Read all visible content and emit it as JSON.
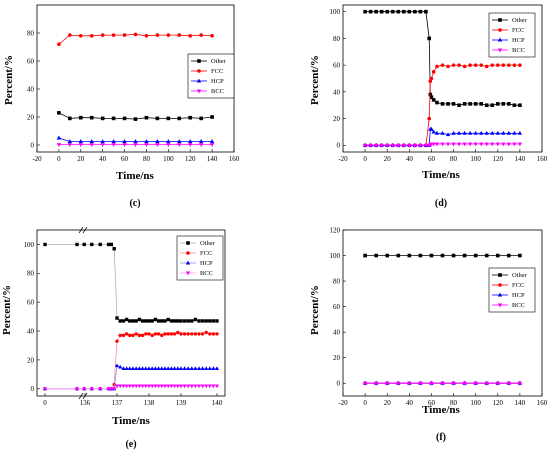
{
  "colors": {
    "Other": "#000000",
    "FCC": "#ff0000",
    "HCP": "#0000ff",
    "BCC": "#ff00ff"
  },
  "chart_data": [
    {
      "type": "line",
      "panel_label": "(c)",
      "xlabel": "Time/ns",
      "ylabel": "Percent/%",
      "xlim": [
        -20,
        160
      ],
      "ylim": [
        -5,
        100
      ],
      "xticks": [
        -20,
        0,
        20,
        40,
        60,
        80,
        100,
        120,
        140,
        160
      ],
      "yticks": [
        0,
        20,
        40,
        60,
        80
      ],
      "legend_position": "right",
      "x": [
        0,
        10,
        20,
        30,
        40,
        50,
        60,
        70,
        80,
        90,
        100,
        110,
        120,
        130,
        140
      ],
      "series": [
        {
          "name": "Other",
          "marker": "square",
          "values": [
            23,
            19,
            19.5,
            19.5,
            19,
            19,
            19,
            18.5,
            19.5,
            19,
            19,
            19,
            19.5,
            19,
            20
          ]
        },
        {
          "name": "FCC",
          "marker": "circle",
          "values": [
            72,
            78.5,
            78,
            78,
            78.5,
            78.5,
            78.5,
            79,
            78,
            78.5,
            78.5,
            78.5,
            78,
            78.5,
            78
          ]
        },
        {
          "name": "HCP",
          "marker": "triangle-up",
          "values": [
            5,
            2.5,
            2.5,
            2.5,
            2.5,
            2.5,
            2.5,
            2.5,
            2.5,
            2.5,
            2.5,
            2.5,
            2.5,
            2.5,
            2.5
          ]
        },
        {
          "name": "BCC",
          "marker": "triangle-down",
          "values": [
            0.3,
            0.3,
            0.3,
            0.3,
            0.3,
            0.3,
            0.3,
            0.3,
            0.3,
            0.3,
            0.3,
            0.3,
            0.3,
            0.3,
            0.3
          ]
        }
      ]
    },
    {
      "type": "line",
      "panel_label": "(d)",
      "xlabel": "Time/ns",
      "ylabel": "Percent/%",
      "xlim": [
        -20,
        160
      ],
      "ylim": [
        -5,
        105
      ],
      "xticks": [
        -20,
        0,
        20,
        40,
        60,
        80,
        100,
        120,
        140,
        160
      ],
      "yticks": [
        0,
        20,
        40,
        60,
        80,
        100
      ],
      "legend_position": "top-right",
      "x": [
        0,
        5,
        10,
        15,
        20,
        25,
        30,
        35,
        40,
        45,
        50,
        55,
        58,
        59,
        60,
        62,
        65,
        70,
        75,
        80,
        85,
        90,
        95,
        100,
        105,
        110,
        115,
        120,
        125,
        130,
        135,
        140
      ],
      "series": [
        {
          "name": "Other",
          "marker": "square",
          "values": [
            100,
            100,
            100,
            100,
            100,
            100,
            100,
            100,
            100,
            100,
            100,
            100,
            80,
            38,
            36,
            34,
            32,
            31,
            31,
            31,
            30,
            31,
            31,
            31,
            31,
            30,
            30,
            31,
            31,
            31,
            30,
            30
          ]
        },
        {
          "name": "FCC",
          "marker": "circle",
          "values": [
            0,
            0,
            0,
            0,
            0,
            0,
            0,
            0,
            0,
            0,
            0,
            0,
            20,
            48,
            50,
            55,
            59,
            60,
            59,
            60,
            60,
            59,
            60,
            60,
            60,
            59,
            60,
            60,
            60,
            60,
            60,
            60
          ]
        },
        {
          "name": "HCP",
          "marker": "triangle-up",
          "values": [
            0,
            0,
            0,
            0,
            0,
            0,
            0,
            0,
            0,
            0,
            0,
            0,
            0,
            12,
            12,
            10,
            9,
            9,
            8,
            9,
            9,
            9,
            9,
            9,
            9,
            9,
            9,
            9,
            9,
            9,
            9,
            9
          ]
        },
        {
          "name": "BCC",
          "marker": "triangle-down",
          "values": [
            0,
            0,
            0,
            0,
            0,
            0,
            0,
            0,
            0,
            0,
            0,
            0,
            0,
            1,
            1,
            1,
            1,
            1,
            1,
            1,
            1,
            1,
            1,
            1,
            1,
            1,
            1,
            1,
            1,
            1,
            1,
            1
          ]
        }
      ]
    },
    {
      "type": "line",
      "panel_label": "(e)",
      "xlabel": "Time/ns",
      "ylabel": "Percent/%",
      "ylim": [
        -5,
        110
      ],
      "xticks": [
        "0",
        "136",
        "137",
        "138",
        "139",
        "140"
      ],
      "yticks": [
        0,
        20,
        40,
        60,
        80,
        100
      ],
      "broken_axis": true,
      "legend_position": "top-right",
      "x": [
        0,
        135.4,
        135.8,
        136.1,
        136.4,
        136.7,
        136.8,
        136.9,
        137.0,
        137.1,
        137.2,
        137.3,
        137.4,
        137.5,
        137.6,
        137.7,
        137.8,
        137.9,
        138.0,
        138.1,
        138.2,
        138.3,
        138.4,
        138.5,
        138.6,
        138.7,
        138.8,
        138.9,
        139.0,
        139.1,
        139.2,
        139.3,
        139.4,
        139.5,
        139.6,
        139.7,
        139.8,
        139.9,
        140.0
      ],
      "series": [
        {
          "name": "Other",
          "marker": "square",
          "values": [
            100,
            100,
            100,
            100,
            100,
            100,
            100,
            97,
            49,
            47,
            47,
            48,
            47,
            47,
            47,
            48,
            47,
            47,
            47,
            47,
            48,
            47,
            47,
            47,
            48,
            47,
            47,
            47,
            47,
            47,
            47,
            47,
            48,
            47,
            47,
            47,
            47,
            47,
            47
          ]
        },
        {
          "name": "FCC",
          "marker": "circle",
          "values": [
            0,
            0,
            0,
            0,
            0,
            0,
            0,
            3,
            33,
            37,
            37,
            38,
            37,
            37,
            38,
            37,
            37,
            38,
            38,
            37,
            38,
            38,
            37,
            38,
            38,
            38,
            38,
            39,
            38,
            38,
            38,
            38,
            38,
            38,
            38,
            39,
            38,
            38,
            38
          ]
        },
        {
          "name": "HCP",
          "marker": "triangle-up",
          "values": [
            0,
            0,
            0,
            0,
            0,
            0,
            0,
            0,
            16,
            15,
            14,
            14,
            14,
            14,
            14,
            14,
            14,
            14,
            14,
            14,
            14,
            14,
            14,
            14,
            14,
            14,
            14,
            14,
            14,
            14,
            14,
            14,
            14,
            14,
            14,
            14,
            14,
            14,
            14
          ]
        },
        {
          "name": "BCC",
          "marker": "triangle-down",
          "values": [
            0,
            0,
            0,
            0,
            0,
            0,
            0,
            0,
            2,
            2,
            2,
            2,
            2,
            2,
            2,
            2,
            2,
            2,
            2,
            2,
            2,
            2,
            2,
            2,
            2,
            2,
            2,
            2,
            2,
            2,
            2,
            2,
            2,
            2,
            2,
            2,
            2,
            2,
            2
          ]
        }
      ]
    },
    {
      "type": "line",
      "panel_label": "(f)",
      "xlabel": "Time/ns",
      "ylabel": "Percent/%",
      "xlim": [
        -20,
        160
      ],
      "ylim": [
        -10,
        120
      ],
      "xticks": [
        -20,
        0,
        20,
        40,
        60,
        80,
        100,
        120,
        140,
        160
      ],
      "yticks": [
        0,
        20,
        40,
        60,
        80,
        100,
        120
      ],
      "legend_position": "right",
      "x": [
        0,
        10,
        20,
        30,
        40,
        50,
        60,
        70,
        80,
        90,
        100,
        110,
        120,
        130,
        140
      ],
      "series": [
        {
          "name": "Other",
          "marker": "square",
          "values": [
            100,
            100,
            100,
            100,
            100,
            100,
            100,
            100,
            100,
            100,
            100,
            100,
            100,
            100,
            100
          ]
        },
        {
          "name": "FCC",
          "marker": "circle",
          "values": [
            0,
            0,
            0,
            0,
            0,
            0,
            0,
            0,
            0,
            0,
            0,
            0,
            0,
            0,
            0
          ]
        },
        {
          "name": "HCP",
          "marker": "triangle-up",
          "values": [
            0,
            0,
            0,
            0,
            0,
            0,
            0,
            0,
            0,
            0,
            0,
            0,
            0,
            0,
            0
          ]
        },
        {
          "name": "BCC",
          "marker": "triangle-down",
          "values": [
            0,
            0,
            0,
            0,
            0,
            0,
            0,
            0,
            0,
            0,
            0,
            0,
            0,
            0,
            0
          ]
        }
      ]
    }
  ]
}
